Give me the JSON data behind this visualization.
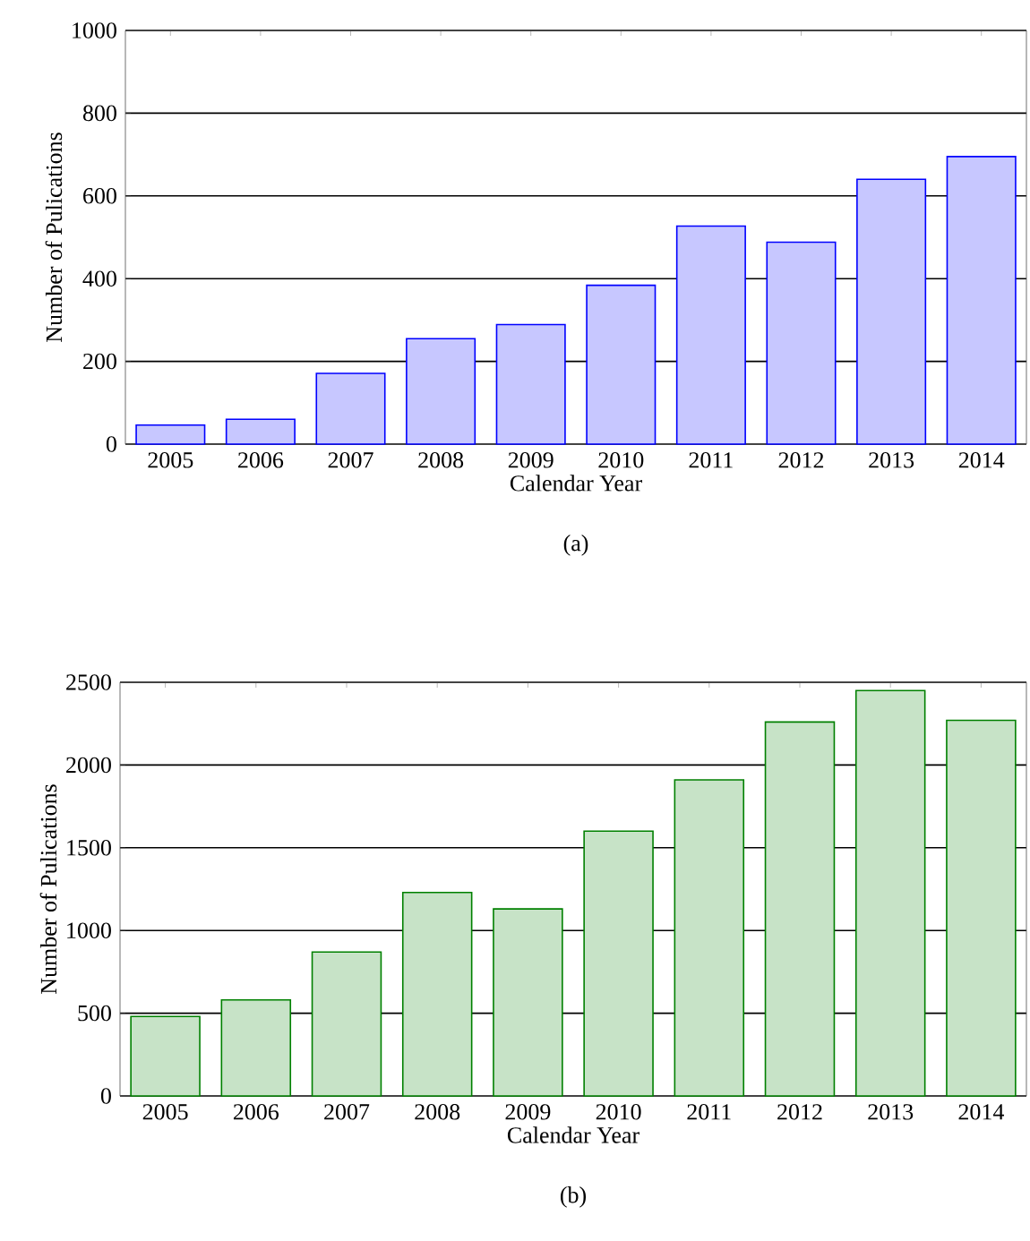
{
  "chart_data": [
    {
      "type": "bar",
      "title": "(a)",
      "xlabel": "Calendar Year",
      "ylabel": "Number of Pulications",
      "categories": [
        "2005",
        "2006",
        "2007",
        "2008",
        "2009",
        "2010",
        "2011",
        "2012",
        "2013",
        "2014"
      ],
      "series": [
        {
          "color": "#0000ff",
          "values": [
            46,
            60,
            171,
            255,
            289,
            384,
            527,
            488,
            640,
            695
          ]
        }
      ],
      "ylim": [
        0,
        1000
      ],
      "yticks": [
        0,
        200,
        400,
        600,
        800,
        1000
      ],
      "grid": "y"
    },
    {
      "type": "bar",
      "title": "(b)",
      "xlabel": "Calendar Year",
      "ylabel": "Number of Pulications",
      "categories": [
        "2005",
        "2006",
        "2007",
        "2008",
        "2009",
        "2010",
        "2011",
        "2012",
        "2013",
        "2014"
      ],
      "series": [
        {
          "color": "#008000",
          "values": [
            480,
            580,
            870,
            1230,
            1130,
            1600,
            1910,
            2260,
            2450,
            2270
          ]
        }
      ],
      "ylim": [
        0,
        2500
      ],
      "yticks": [
        0,
        500,
        1000,
        1500,
        2000,
        2500
      ],
      "grid": "y"
    }
  ]
}
